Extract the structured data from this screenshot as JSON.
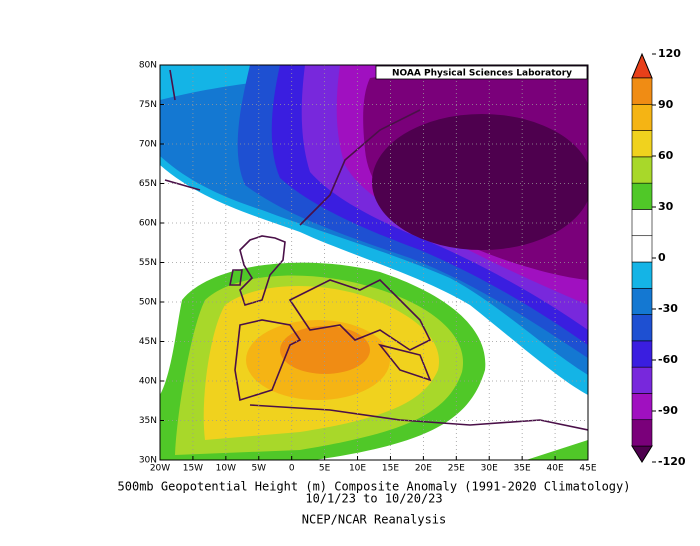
{
  "map": {
    "title_lines": [
      "500mb Geopotential Height (m) Composite Anomaly (1991-2020 Climatology)",
      "10/1/23  to 10/20/23"
    ],
    "source": "NCEP/NCAR Reanalysis",
    "credit": "NOAA Physical Sciences Laboratory",
    "lon_labels": [
      "20W",
      "15W",
      "10W",
      "5W",
      "0",
      "5E",
      "10E",
      "15E",
      "20E",
      "25E",
      "30E",
      "35E",
      "40E",
      "45E"
    ],
    "lat_labels": [
      "30N",
      "35N",
      "40N",
      "45N",
      "50N",
      "55N",
      "60N",
      "65N",
      "70N",
      "75N",
      "80N"
    ],
    "colorbar": {
      "ticks": [
        -120,
        -90,
        -60,
        -30,
        0,
        30,
        60,
        90,
        120
      ],
      "colors": [
        "#4e004e",
        "#7a007a",
        "#a010c0",
        "#7828dc",
        "#3a1ee0",
        "#1e50d2",
        "#1478d2",
        "#14b4e6",
        "#ffffff",
        "#ffffff",
        "#50c828",
        "#a8d82a",
        "#f0d21e",
        "#f5b414",
        "#f08c14",
        "#e8401a"
      ]
    }
  }
}
